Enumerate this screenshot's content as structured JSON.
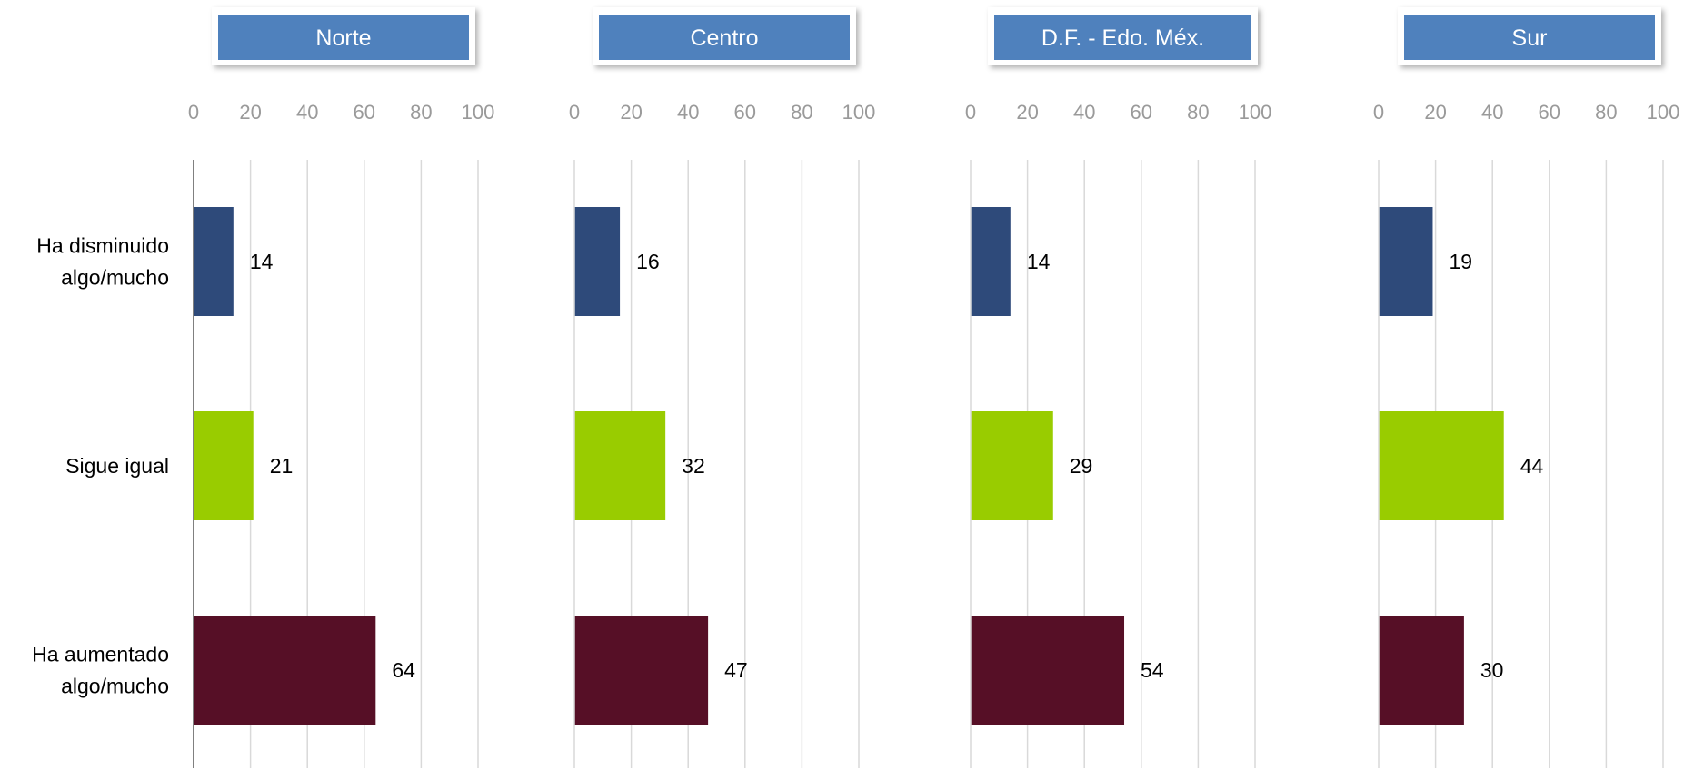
{
  "chart_data": {
    "type": "bar",
    "orientation": "horizontal",
    "categories": [
      "Ha disminuido algo/mucho",
      "Sigue igual",
      "Ha aumentado algo/mucho"
    ],
    "category_lines": [
      [
        "Ha disminuido",
        "algo/mucho"
      ],
      [
        "Sigue igual"
      ],
      [
        "Ha aumentado",
        "algo/mucho"
      ]
    ],
    "xlim": [
      0,
      100
    ],
    "ticks": [
      "0",
      "20",
      "40",
      "60",
      "80",
      "100"
    ],
    "grid": true,
    "category_colors": [
      "#2e4a7a",
      "#99cc00",
      "#560f26"
    ],
    "header_color": "#4f81bd",
    "panels": [
      {
        "name": "Norte",
        "values": [
          14,
          21,
          64
        ]
      },
      {
        "name": "Centro",
        "values": [
          16,
          32,
          47
        ]
      },
      {
        "name": "D.F. - Edo. Méx.",
        "values": [
          14,
          29,
          54
        ]
      },
      {
        "name": "Sur",
        "values": [
          19,
          44,
          30
        ]
      }
    ]
  }
}
